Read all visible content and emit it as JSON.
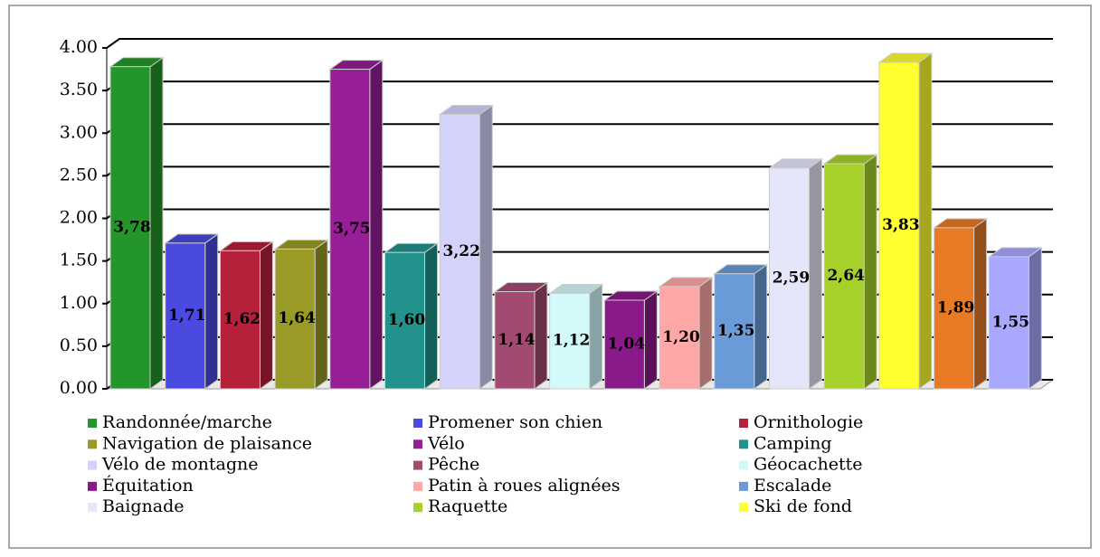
{
  "chart_data": {
    "type": "bar3d",
    "categories": [
      "Randonnée/marche",
      "Promener son chien",
      "Ornithologie",
      "Navigation de plaisance",
      "Vélo",
      "Camping",
      "Vélo de montagne",
      "Pêche",
      "Géocachette",
      "Équitation",
      "Patin à roues alignées",
      "Escalade",
      "Baignade",
      "Raquette",
      "Ski de fond",
      null,
      null
    ],
    "values": [
      3.78,
      1.71,
      1.62,
      1.64,
      3.75,
      1.6,
      3.22,
      1.14,
      1.12,
      1.04,
      1.2,
      1.35,
      2.59,
      2.64,
      3.83,
      1.89,
      1.55
    ],
    "value_labels": [
      "3,78",
      "1,71",
      "1,62",
      "1,64",
      "3,75",
      "1,60",
      "3,22",
      "1,14",
      "1,12",
      "1,04",
      "1,20",
      "1,35",
      "2,59",
      "2,64",
      "3,83",
      "1,89",
      "1,55"
    ],
    "colors": [
      "#24952a",
      "#4a4ae0",
      "#b5203a",
      "#9a9a26",
      "#961e96",
      "#21928c",
      "#d2d2fa",
      "#a34a72",
      "#d2fafa",
      "#8a1a8a",
      "#ffa8a8",
      "#6a9bd8",
      "#e6e6fa",
      "#a6d12a",
      "#ffff30",
      "#e87a26",
      "#a8a8ff"
    ],
    "ylim": [
      0,
      4
    ],
    "yticks": [
      {
        "value": 0,
        "label": "0.00"
      },
      {
        "value": 0.5,
        "label": "0.50"
      },
      {
        "value": 1,
        "label": "1.00"
      },
      {
        "value": 1.5,
        "label": "1.50"
      },
      {
        "value": 2,
        "label": "2.00"
      },
      {
        "value": 2.5,
        "label": "2.50"
      },
      {
        "value": 3,
        "label": "3.00"
      },
      {
        "value": 3.5,
        "label": "3.50"
      },
      {
        "value": 4,
        "label": "4.00"
      }
    ],
    "grid": true,
    "legend": "bottom"
  }
}
